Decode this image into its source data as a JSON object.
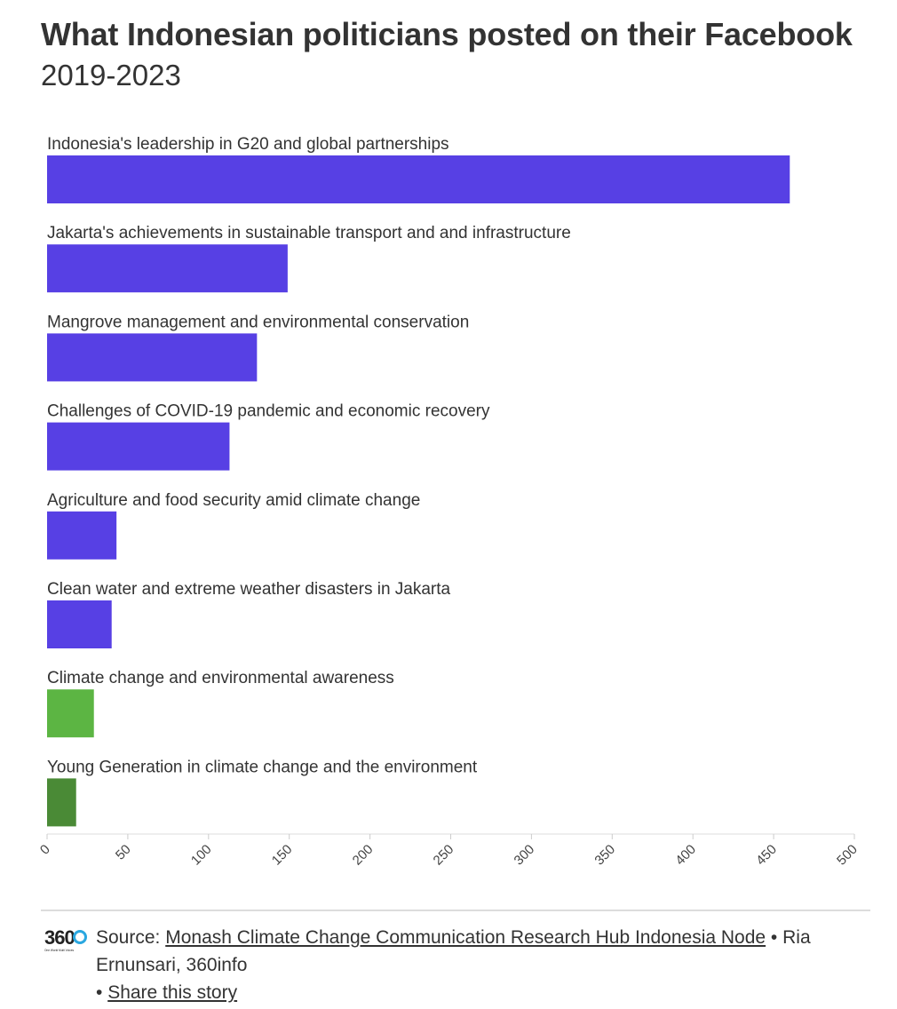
{
  "title": "What Indonesian politicians posted on their Facebook",
  "subtitle": "2019-2023",
  "chart_data": {
    "type": "bar",
    "orientation": "horizontal",
    "categories": [
      "Indonesia's leadership in G20 and global partnerships",
      "Jakarta's achievements in sustainable transport and and infrastructure",
      "Mangrove management and environmental conservation",
      "Challenges of COVID-19 pandemic and economic recovery",
      "Agriculture and food security amid climate change",
      "Clean water and extreme weather disasters in Jakarta",
      "Climate change and environmental awareness",
      "Young Generation in climate change and the environment"
    ],
    "values": [
      460,
      149,
      130,
      113,
      43,
      40,
      29,
      18
    ],
    "colors": [
      "#5740e4",
      "#5740e4",
      "#5740e4",
      "#5740e4",
      "#5740e4",
      "#5740e4",
      "#5cb543",
      "#4a8a36"
    ],
    "xlim": [
      0,
      500
    ],
    "ticks": [
      0,
      50,
      100,
      150,
      200,
      250,
      300,
      350,
      400,
      450,
      500
    ],
    "tick_labels": [
      "0",
      "50",
      "100",
      "150",
      "200",
      "250",
      "300",
      "350",
      "400",
      "450",
      "500"
    ],
    "grid": false,
    "legend": "none"
  },
  "footer": {
    "logo_text": "360",
    "logo_tagline": "One World Multi Voices",
    "source_prefix": "Source: ",
    "source_link": "Monash Climate Change Communication Research Hub Indonesia Node",
    "source_suffix": " • Ria Ernunsari, 360info",
    "bullet": "• ",
    "share_link": "Share this story"
  }
}
